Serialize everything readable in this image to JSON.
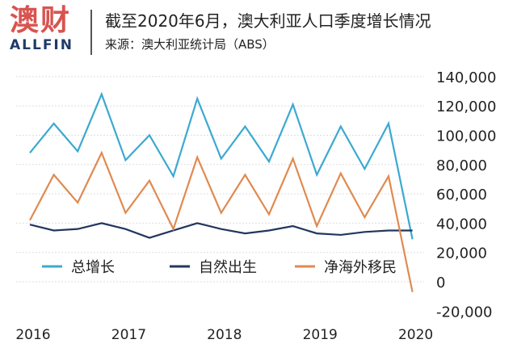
{
  "header": {
    "logo_cn": "澳财",
    "logo_en": "ALLFIN",
    "title": "截至2020年6月，澳大利亚人口季度增长情况",
    "source": "来源：澳大利亚统计局（ABS）"
  },
  "chart_data": {
    "type": "line",
    "title": "截至2020年6月，澳大利亚人口季度增长情况",
    "x_tick_labels": [
      "2016",
      "2017",
      "2018",
      "2019",
      "2020"
    ],
    "x": [
      "2016Q1",
      "2016Q2",
      "2016Q3",
      "2016Q4",
      "2017Q1",
      "2017Q2",
      "2017Q3",
      "2017Q4",
      "2018Q1",
      "2018Q2",
      "2018Q3",
      "2018Q4",
      "2019Q1",
      "2019Q2",
      "2019Q3",
      "2019Q4",
      "2020Q1"
    ],
    "ylim": [
      -20000,
      140000
    ],
    "y_ticks": [
      -20000,
      0,
      20000,
      40000,
      60000,
      80000,
      100000,
      120000,
      140000
    ],
    "y_tick_labels": [
      "-20,000",
      "0",
      "20,000",
      "40,000",
      "60,000",
      "80,000",
      "100,000",
      "120,000",
      "140,000"
    ],
    "y_axis_side": "right",
    "grid": true,
    "legend_position": "bottom-inside",
    "series": [
      {
        "name": "总增长",
        "color": "#3ba9d0",
        "values": [
          88000,
          108000,
          89000,
          128000,
          83000,
          100000,
          72000,
          125000,
          84000,
          106000,
          82000,
          121000,
          73000,
          106000,
          77000,
          108000,
          29000
        ]
      },
      {
        "name": "自然出生",
        "color": "#22375e",
        "values": [
          39000,
          35000,
          36000,
          40000,
          36000,
          30000,
          35000,
          40000,
          36000,
          33000,
          35000,
          38000,
          33000,
          32000,
          34000,
          35000,
          35000
        ]
      },
      {
        "name": "净海外移民",
        "color": "#e08a50",
        "values": [
          42000,
          73000,
          54000,
          88000,
          47000,
          69000,
          36000,
          85000,
          47000,
          73000,
          46000,
          84000,
          38000,
          74000,
          44000,
          72000,
          -7000
        ]
      }
    ]
  }
}
